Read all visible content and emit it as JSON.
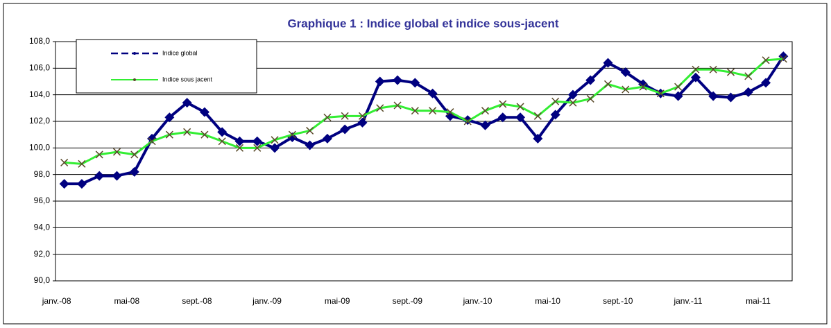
{
  "chart_data": {
    "type": "line",
    "title": "Graphique 1 : Indice global et indice sous-jacent",
    "categories": [
      "janv.-08",
      null,
      null,
      null,
      "mai-08",
      null,
      null,
      null,
      "sept.-08",
      null,
      null,
      null,
      "janv.-09",
      null,
      null,
      null,
      "mai-09",
      null,
      null,
      null,
      "sept.-09",
      null,
      null,
      null,
      "janv.-10",
      null,
      null,
      null,
      "mai-10",
      null,
      null,
      null,
      "sept.-10",
      null,
      null,
      null,
      "janv.-11",
      null,
      null,
      null,
      "mai-11",
      null
    ],
    "series": [
      {
        "name": "Indice global",
        "color": "#000080",
        "marker": "diamond",
        "values": [
          97.3,
          97.3,
          97.9,
          97.9,
          98.2,
          100.7,
          102.3,
          103.4,
          102.7,
          101.2,
          100.5,
          100.5,
          100.0,
          100.8,
          100.2,
          100.7,
          101.4,
          101.9,
          105.0,
          105.1,
          104.9,
          104.1,
          102.4,
          102.1,
          101.7,
          102.3,
          102.3,
          100.7,
          102.5,
          104.0,
          105.1,
          106.4,
          105.7,
          104.8,
          104.1,
          103.9,
          105.3,
          103.9,
          103.8,
          104.2,
          104.9,
          106.9
        ]
      },
      {
        "name": "Indice sous jacent",
        "color": "#33ee33",
        "marker": "x",
        "marker_color": "#5a4a2a",
        "values": [
          98.9,
          98.8,
          99.5,
          99.7,
          99.5,
          100.5,
          101.0,
          101.2,
          101.0,
          100.5,
          100.0,
          100.0,
          100.6,
          101.0,
          101.3,
          102.3,
          102.4,
          102.4,
          103.0,
          103.2,
          102.8,
          102.8,
          102.7,
          102.0,
          102.8,
          103.3,
          103.1,
          102.4,
          103.5,
          103.4,
          103.7,
          104.8,
          104.4,
          104.6,
          104.1,
          104.6,
          105.9,
          105.9,
          105.7,
          105.4,
          106.6,
          106.7
        ]
      }
    ],
    "ylim": [
      90,
      108
    ],
    "yticks": [
      {
        "value": 90,
        "label": "90,0"
      },
      {
        "value": 92,
        "label": "92,0"
      },
      {
        "value": 94,
        "label": "94,0"
      },
      {
        "value": 96,
        "label": "96,0"
      },
      {
        "value": 98,
        "label": "98,0"
      },
      {
        "value": 100,
        "label": "100,0"
      },
      {
        "value": 102,
        "label": "102,0"
      },
      {
        "value": 104,
        "label": "104,0"
      },
      {
        "value": 106,
        "label": "106,0"
      },
      {
        "value": 108,
        "label": "108,0"
      }
    ],
    "grid": true,
    "legend": "top-left"
  }
}
